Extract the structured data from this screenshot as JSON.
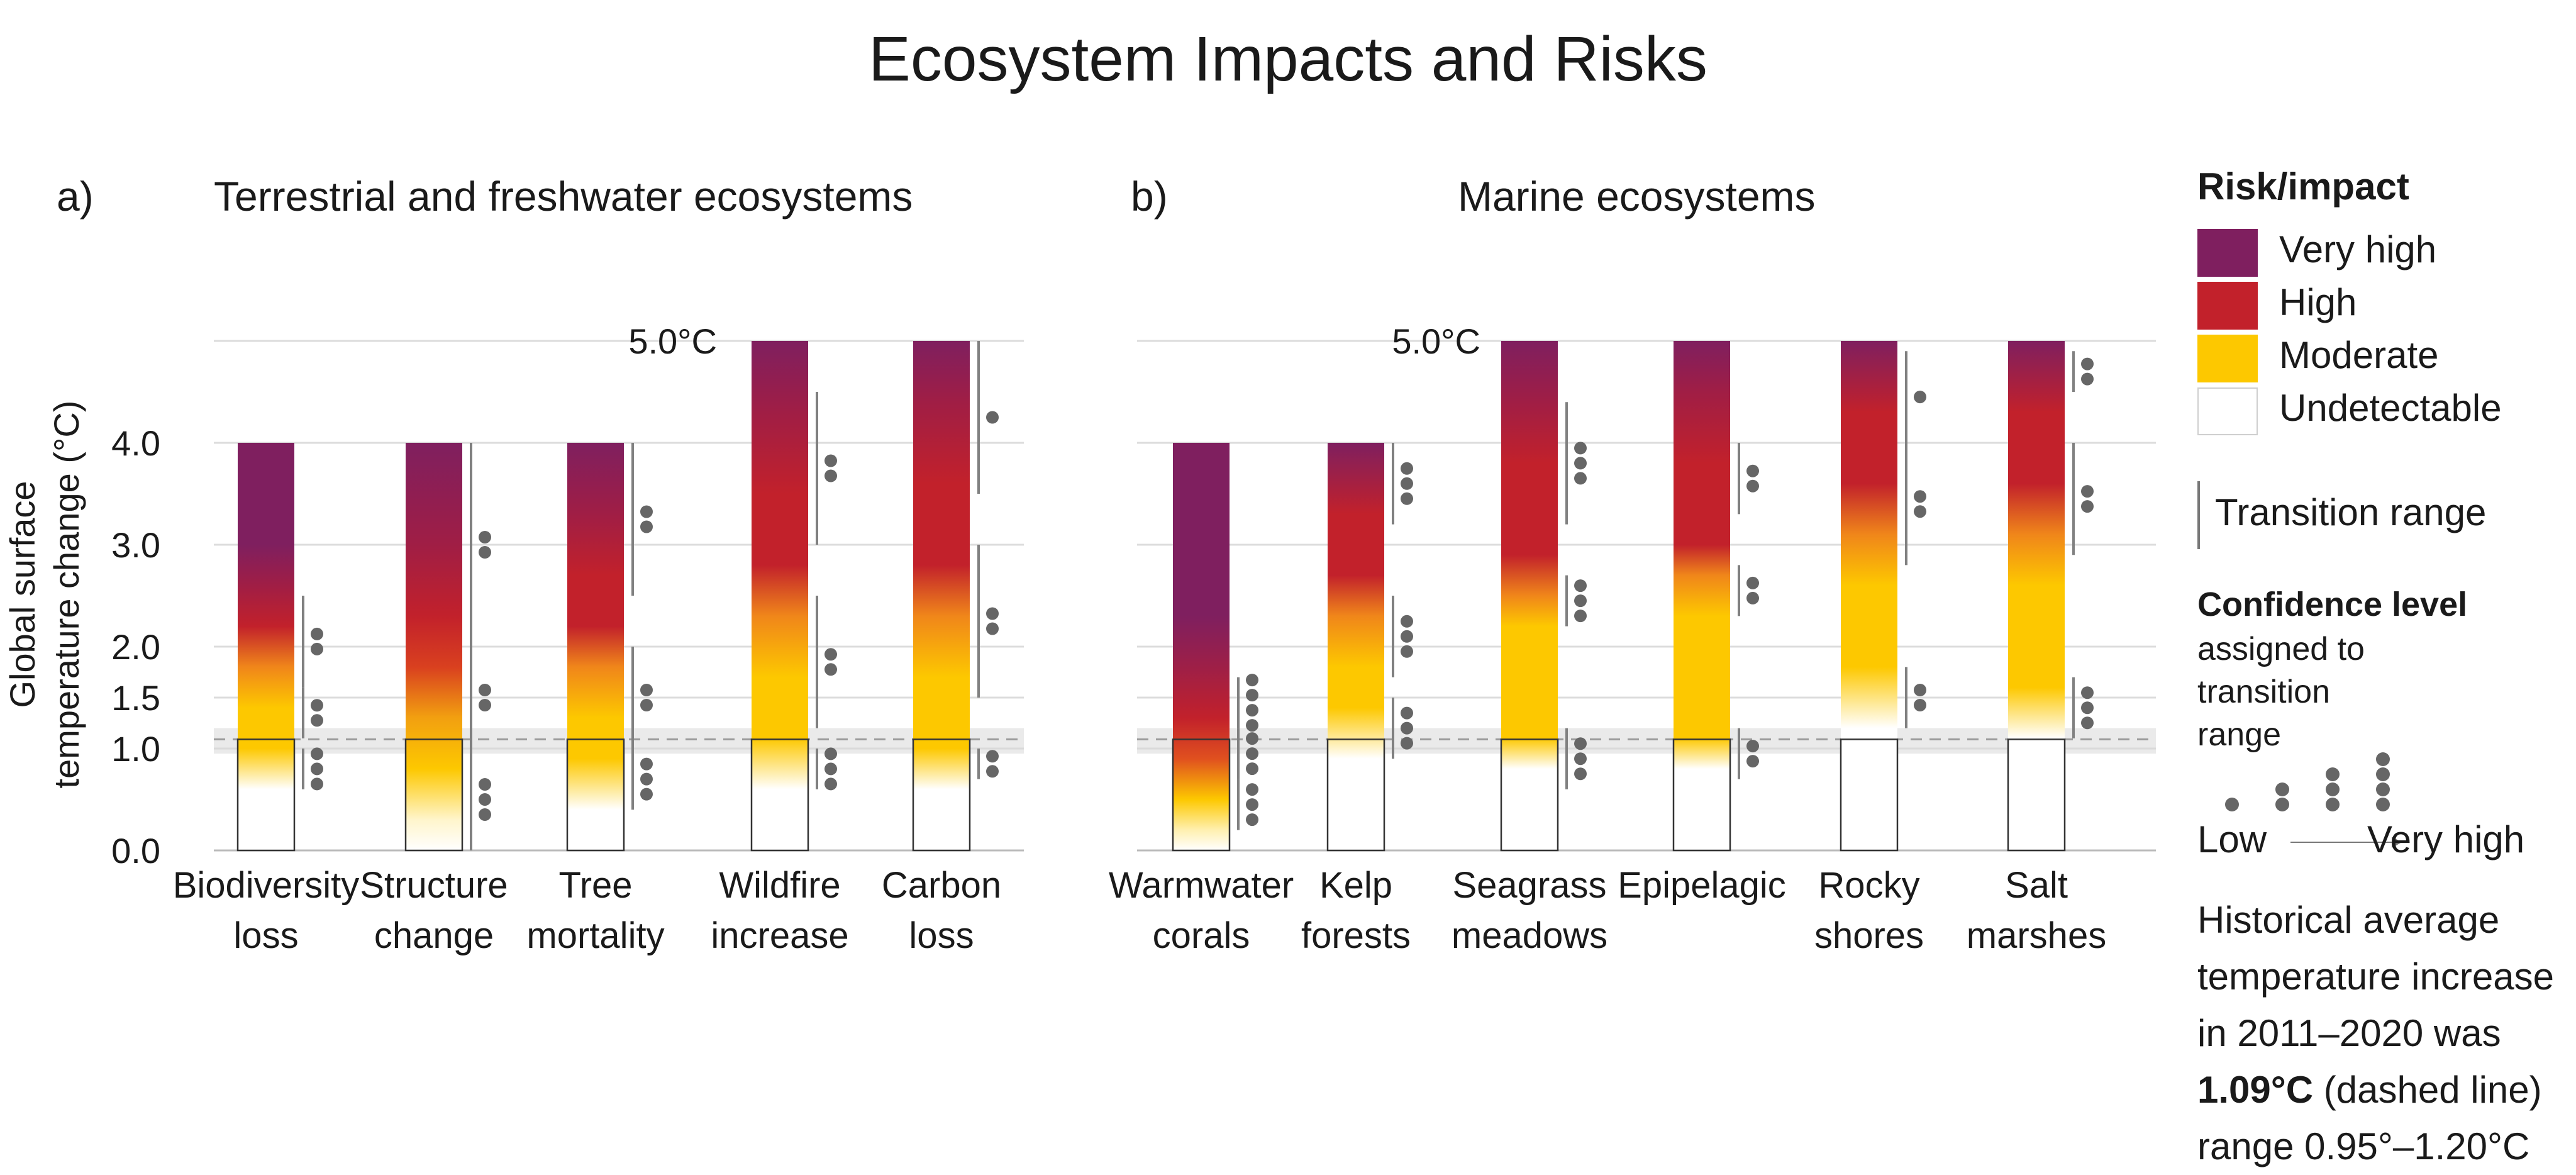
{
  "title": "Ecosystem Impacts and Risks",
  "panels": [
    {
      "letter": "a)",
      "title": "Terrestrial and freshwater ecosystems"
    },
    {
      "letter": "b)",
      "title": "Marine ecosystems"
    }
  ],
  "legend": {
    "title": "Risk/impact",
    "levels": [
      {
        "label": "Very high",
        "color": "#7f1f5f"
      },
      {
        "label": "High",
        "color": "#c2212b"
      },
      {
        "label": "Moderate",
        "color": "#fdc800"
      },
      {
        "label": "Undetectable",
        "color": "#ffffff"
      }
    ],
    "transition_label": "Transition range",
    "confidence_title": "Confidence level",
    "confidence_desc": "assigned to transition range",
    "low_label": "Low",
    "very_high_label": "Very high",
    "historical_note": {
      "line1": "Historical average",
      "line2": "temperature increase",
      "line3": "in 2011–2020 was",
      "value": "1.09°C",
      "after_value": " (dashed line)",
      "range": "range 0.95°–1.20°C"
    }
  },
  "chart_data": [
    {
      "type": "bar",
      "panel": "a",
      "title": "Terrestrial and freshwater ecosystems",
      "ylabel": "Global surface temperature change (°C)",
      "ylim": [
        0,
        5
      ],
      "yticks": [
        0.0,
        1.0,
        1.5,
        2.0,
        3.0,
        4.0
      ],
      "ytick_labels": [
        "0.0",
        "1.0",
        "1.5",
        "2.0",
        "3.0",
        "4.0"
      ],
      "top_label": "5.0°C",
      "historical": {
        "mean": 1.09,
        "low": 0.95,
        "high": 1.2
      },
      "categories": [
        {
          "label": [
            "Biodiversity",
            "loss"
          ],
          "top": 4.0,
          "stops": [
            [
              0,
              "#ffffff"
            ],
            [
              0.6,
              "#ffffff"
            ],
            [
              1.0,
              "#fdc800"
            ],
            [
              1.4,
              "#fdc800"
            ],
            [
              1.8,
              "#f0861a"
            ],
            [
              2.2,
              "#c2212b"
            ],
            [
              2.6,
              "#a01e45"
            ],
            [
              3.0,
              "#7f1f5f"
            ],
            [
              4.0,
              "#7f1f5f"
            ]
          ],
          "transitions": [
            {
              "from": 0.6,
              "to": 1.0,
              "conf": 3
            },
            {
              "from": 1.1,
              "to": 1.6,
              "conf": 2
            },
            {
              "from": 1.6,
              "to": 2.5,
              "conf": 2
            }
          ]
        },
        {
          "label": [
            "Structure",
            "change"
          ],
          "top": 4.0,
          "stops": [
            [
              0,
              "#ffffff"
            ],
            [
              0.3,
              "#fff5cc"
            ],
            [
              0.8,
              "#fdc800"
            ],
            [
              1.3,
              "#f2a010"
            ],
            [
              1.8,
              "#d9401f"
            ],
            [
              2.3,
              "#c2212b"
            ],
            [
              3.0,
              "#a01e45"
            ],
            [
              4.0,
              "#7f1f5f"
            ]
          ],
          "transitions": [
            {
              "from": 0.0,
              "to": 1.0,
              "conf": 3
            },
            {
              "from": 1.0,
              "to": 2.0,
              "conf": 2
            },
            {
              "from": 2.0,
              "to": 4.0,
              "conf": 2
            }
          ]
        },
        {
          "label": [
            "Tree",
            "mortality"
          ],
          "top": 4.0,
          "stops": [
            [
              0,
              "#ffffff"
            ],
            [
              0.4,
              "#ffffff"
            ],
            [
              0.9,
              "#fdc800"
            ],
            [
              1.3,
              "#fdc800"
            ],
            [
              1.8,
              "#f0861a"
            ],
            [
              2.2,
              "#c2212b"
            ],
            [
              2.7,
              "#c2212b"
            ],
            [
              3.3,
              "#a01e45"
            ],
            [
              4.0,
              "#7f1f5f"
            ]
          ],
          "transitions": [
            {
              "from": 0.4,
              "to": 1.0,
              "conf": 3
            },
            {
              "from": 1.0,
              "to": 2.0,
              "conf": 2
            },
            {
              "from": 2.5,
              "to": 4.0,
              "conf": 2
            }
          ]
        },
        {
          "label": [
            "Wildfire",
            "increase"
          ],
          "top": 5.0,
          "stops": [
            [
              0,
              "#ffffff"
            ],
            [
              0.6,
              "#ffffff"
            ],
            [
              1.1,
              "#fdc800"
            ],
            [
              1.7,
              "#fdc800"
            ],
            [
              2.3,
              "#f0861a"
            ],
            [
              2.8,
              "#c2212b"
            ],
            [
              3.5,
              "#c2212b"
            ],
            [
              4.3,
              "#a01e45"
            ],
            [
              5.0,
              "#7f1f5f"
            ]
          ],
          "transitions": [
            {
              "from": 0.6,
              "to": 1.0,
              "conf": 3
            },
            {
              "from": 1.2,
              "to": 2.5,
              "conf": 2
            },
            {
              "from": 3.0,
              "to": 4.5,
              "conf": 2
            }
          ]
        },
        {
          "label": [
            "Carbon",
            "loss"
          ],
          "top": 5.0,
          "stops": [
            [
              0,
              "#ffffff"
            ],
            [
              0.6,
              "#ffffff"
            ],
            [
              1.0,
              "#fdc800"
            ],
            [
              1.7,
              "#fdc800"
            ],
            [
              2.3,
              "#f0861a"
            ],
            [
              2.8,
              "#c2212b"
            ],
            [
              3.6,
              "#c2212b"
            ],
            [
              4.4,
              "#a01e45"
            ],
            [
              5.0,
              "#7f1f5f"
            ]
          ],
          "transitions": [
            {
              "from": 0.7,
              "to": 1.0,
              "conf": 2
            },
            {
              "from": 1.5,
              "to": 3.0,
              "conf": 2
            },
            {
              "from": 3.5,
              "to": 5.0,
              "conf": 1
            }
          ]
        }
      ]
    },
    {
      "type": "bar",
      "panel": "b",
      "title": "Marine ecosystems",
      "ylim": [
        0,
        5
      ],
      "yticks": [
        0.0,
        1.0,
        1.5,
        2.0,
        3.0,
        4.0
      ],
      "top_label": "5.0°C",
      "historical": {
        "mean": 1.09,
        "low": 0.95,
        "high": 1.2
      },
      "categories": [
        {
          "label": [
            "Warmwater",
            "corals"
          ],
          "top": 4.0,
          "stops": [
            [
              0,
              "#ffffff"
            ],
            [
              0.2,
              "#fff0b0"
            ],
            [
              0.5,
              "#fdc800"
            ],
            [
              0.9,
              "#e0501f"
            ],
            [
              1.3,
              "#c2212b"
            ],
            [
              1.8,
              "#9e1f47"
            ],
            [
              2.3,
              "#7f1f5f"
            ],
            [
              4.0,
              "#7f1f5f"
            ]
          ],
          "transitions": [
            {
              "from": 0.2,
              "to": 0.7,
              "conf": 3
            },
            {
              "from": 0.7,
              "to": 1.2,
              "conf": 3
            },
            {
              "from": 1.2,
              "to": 1.7,
              "conf": 4
            }
          ]
        },
        {
          "label": [
            "Kelp",
            "forests"
          ],
          "top": 4.0,
          "stops": [
            [
              0,
              "#ffffff"
            ],
            [
              0.9,
              "#ffffff"
            ],
            [
              1.4,
              "#fdc800"
            ],
            [
              1.8,
              "#fdc800"
            ],
            [
              2.3,
              "#f0861a"
            ],
            [
              2.7,
              "#c2212b"
            ],
            [
              3.3,
              "#c2212b"
            ],
            [
              4.0,
              "#7f1f5f"
            ]
          ],
          "transitions": [
            {
              "from": 0.9,
              "to": 1.5,
              "conf": 3
            },
            {
              "from": 1.7,
              "to": 2.5,
              "conf": 3
            },
            {
              "from": 3.2,
              "to": 4.0,
              "conf": 3
            }
          ]
        },
        {
          "label": [
            "Seagrass",
            "meadows"
          ],
          "top": 5.0,
          "stops": [
            [
              0,
              "#ffffff"
            ],
            [
              0.8,
              "#ffffff"
            ],
            [
              1.1,
              "#fdc800"
            ],
            [
              2.2,
              "#fdc800"
            ],
            [
              2.5,
              "#f0861a"
            ],
            [
              2.9,
              "#c2212b"
            ],
            [
              3.8,
              "#c2212b"
            ],
            [
              4.4,
              "#a01e45"
            ],
            [
              5.0,
              "#7f1f5f"
            ]
          ],
          "transitions": [
            {
              "from": 0.6,
              "to": 1.2,
              "conf": 3
            },
            {
              "from": 2.2,
              "to": 2.7,
              "conf": 3
            },
            {
              "from": 3.2,
              "to": 4.4,
              "conf": 3
            }
          ]
        },
        {
          "label": [
            "Epipelagic"
          ],
          "top": 5.0,
          "stops": [
            [
              0,
              "#ffffff"
            ],
            [
              0.8,
              "#ffffff"
            ],
            [
              1.1,
              "#fdc800"
            ],
            [
              2.3,
              "#fdc800"
            ],
            [
              2.7,
              "#f0861a"
            ],
            [
              3.0,
              "#c2212b"
            ],
            [
              3.8,
              "#c2212b"
            ],
            [
              4.5,
              "#a01e45"
            ],
            [
              5.0,
              "#7f1f5f"
            ]
          ],
          "transitions": [
            {
              "from": 0.7,
              "to": 1.2,
              "conf": 2
            },
            {
              "from": 2.3,
              "to": 2.8,
              "conf": 2
            },
            {
              "from": 3.3,
              "to": 4.0,
              "conf": 2
            }
          ]
        },
        {
          "label": [
            "Rocky",
            "shores"
          ],
          "top": 5.0,
          "stops": [
            [
              0,
              "#ffffff"
            ],
            [
              1.2,
              "#ffffff"
            ],
            [
              1.8,
              "#fdc800"
            ],
            [
              2.6,
              "#fdc800"
            ],
            [
              3.1,
              "#f0861a"
            ],
            [
              3.6,
              "#c2212b"
            ],
            [
              4.3,
              "#c2212b"
            ],
            [
              5.0,
              "#7f1f5f"
            ]
          ],
          "transitions": [
            {
              "from": 1.2,
              "to": 1.8,
              "conf": 2
            },
            {
              "from": 2.8,
              "to": 4.0,
              "conf": 2
            },
            {
              "from": 4.0,
              "to": 4.9,
              "conf": 1
            }
          ]
        },
        {
          "label": [
            "Salt",
            "marshes"
          ],
          "top": 5.0,
          "stops": [
            [
              0,
              "#ffffff"
            ],
            [
              1.1,
              "#ffffff"
            ],
            [
              1.6,
              "#fdc800"
            ],
            [
              2.6,
              "#fdc800"
            ],
            [
              3.1,
              "#f0861a"
            ],
            [
              3.6,
              "#c2212b"
            ],
            [
              4.3,
              "#c2212b"
            ],
            [
              5.0,
              "#7f1f5f"
            ]
          ],
          "transitions": [
            {
              "from": 1.1,
              "to": 1.7,
              "conf": 3
            },
            {
              "from": 2.9,
              "to": 4.0,
              "conf": 2
            },
            {
              "from": 4.5,
              "to": 4.9,
              "conf": 2
            }
          ]
        }
      ]
    }
  ]
}
